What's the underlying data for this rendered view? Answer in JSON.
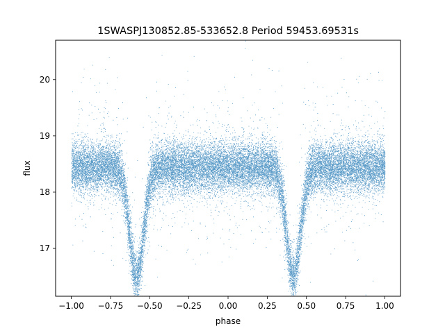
{
  "chart_data": {
    "type": "scatter",
    "title": "1SWASPJ130852.85-533652.8 Period 59453.69531s",
    "xlabel": "phase",
    "ylabel": "flux",
    "xlim": [
      -1.1,
      1.1
    ],
    "ylim": [
      16.15,
      20.7
    ],
    "xticks": [
      {
        "value": -1.0,
        "label": "−1.00"
      },
      {
        "value": -0.75,
        "label": "−0.75"
      },
      {
        "value": -0.5,
        "label": "−0.50"
      },
      {
        "value": -0.25,
        "label": "−0.25"
      },
      {
        "value": 0.0,
        "label": "0.00"
      },
      {
        "value": 0.25,
        "label": "0.25"
      },
      {
        "value": 0.5,
        "label": "0.50"
      },
      {
        "value": 0.75,
        "label": "0.75"
      },
      {
        "value": 1.0,
        "label": "1.00"
      }
    ],
    "yticks": [
      {
        "value": 17,
        "label": "17"
      },
      {
        "value": 18,
        "label": "18"
      },
      {
        "value": 19,
        "label": "19"
      },
      {
        "value": 20,
        "label": "20"
      }
    ],
    "grid": false,
    "marker_color": "#1f77b4",
    "phase_range": [
      -1.0,
      1.0
    ],
    "baseline_flux": 18.45,
    "baseline_scatter": 0.22,
    "eclipses": [
      {
        "phase_center": -0.585,
        "min_flux": 16.5,
        "width": 0.045
      },
      {
        "phase_center": 0.415,
        "min_flux": 16.5,
        "width": 0.045
      }
    ],
    "point_count": 26000
  }
}
